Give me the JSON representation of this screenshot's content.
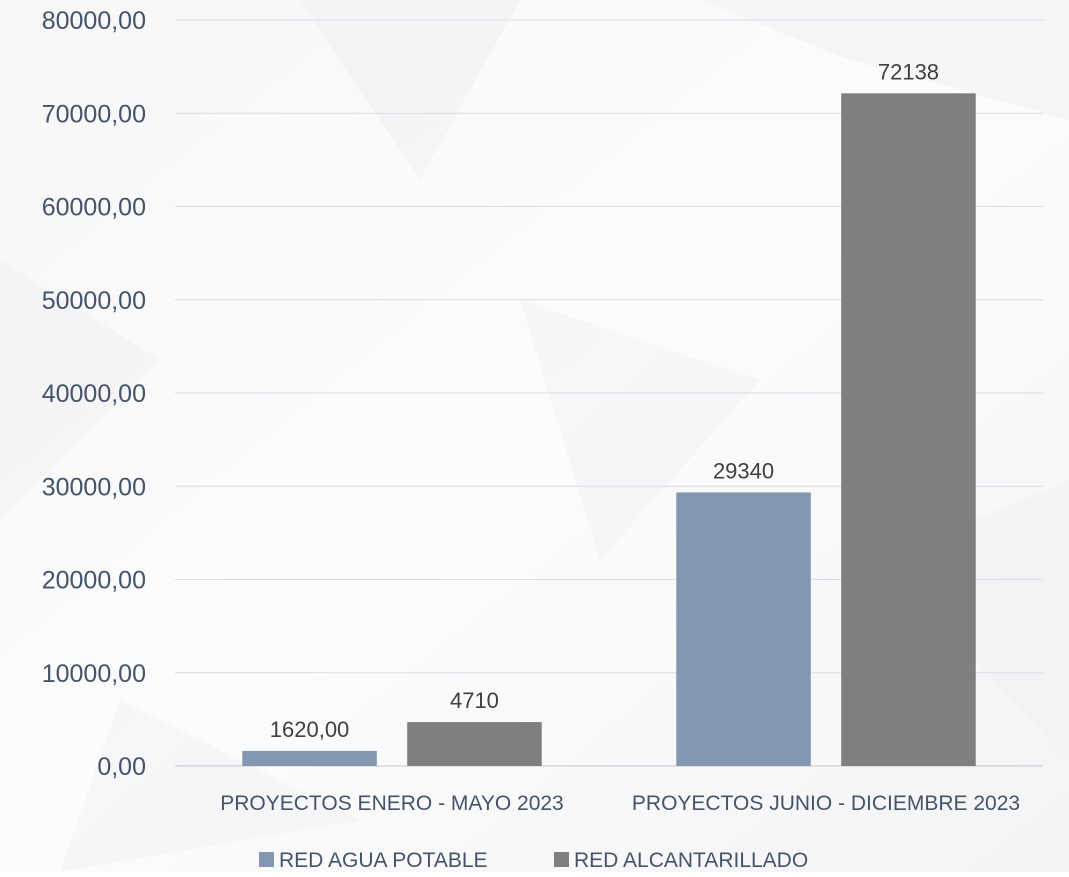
{
  "chart_data": {
    "type": "bar",
    "title": "",
    "xlabel": "",
    "ylabel": "",
    "ylim": [
      0,
      80000
    ],
    "yticks": [
      0,
      10000,
      20000,
      30000,
      40000,
      50000,
      60000,
      70000,
      80000
    ],
    "ytick_labels": [
      "0,00",
      "10000,00",
      "20000,00",
      "30000,00",
      "40000,00",
      "50000,00",
      "60000,00",
      "70000,00",
      "80000,00"
    ],
    "grid": true,
    "legend_position": "bottom",
    "categories": [
      "PROYECTOS  ENERO - MAYO 2023",
      "PROYECTOS  JUNIO - DICIEMBRE 2023"
    ],
    "series": [
      {
        "name": "RED AGUA POTABLE",
        "color": "#8497B0",
        "values": [
          1620,
          29340
        ],
        "labels": [
          "1620,00",
          "29340"
        ]
      },
      {
        "name": "RED ALCANTARILLADO",
        "color": "#7F7F7F",
        "values": [
          4710,
          72138
        ],
        "labels": [
          "4710",
          "72138"
        ]
      }
    ]
  }
}
